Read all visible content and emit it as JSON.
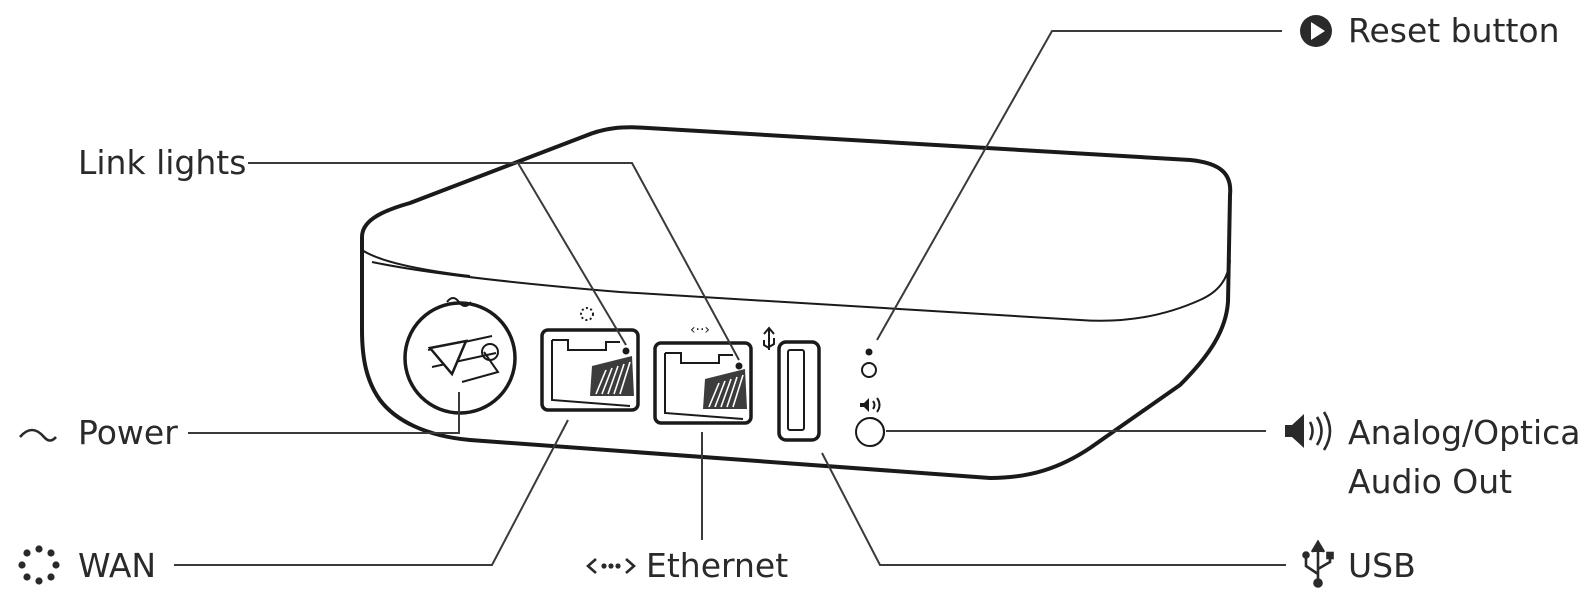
{
  "labels": {
    "reset": "Reset button",
    "link_lights": "Link lights",
    "power": "Power",
    "wan": "WAN",
    "ethernet": "Ethernet",
    "usb": "USB",
    "audio_line1": "Analog/Optical",
    "audio_line2": "Audio Out"
  },
  "icons": {
    "reset": "reset-play-icon",
    "power": "tilde-power-icon",
    "wan": "wan-dots-icon",
    "ethernet": "ethernet-arrows-icon",
    "usb": "usb-trident-icon",
    "audio": "speaker-icon"
  },
  "colors": {
    "line": "#3a3a3a",
    "text": "#2a2a2a"
  }
}
